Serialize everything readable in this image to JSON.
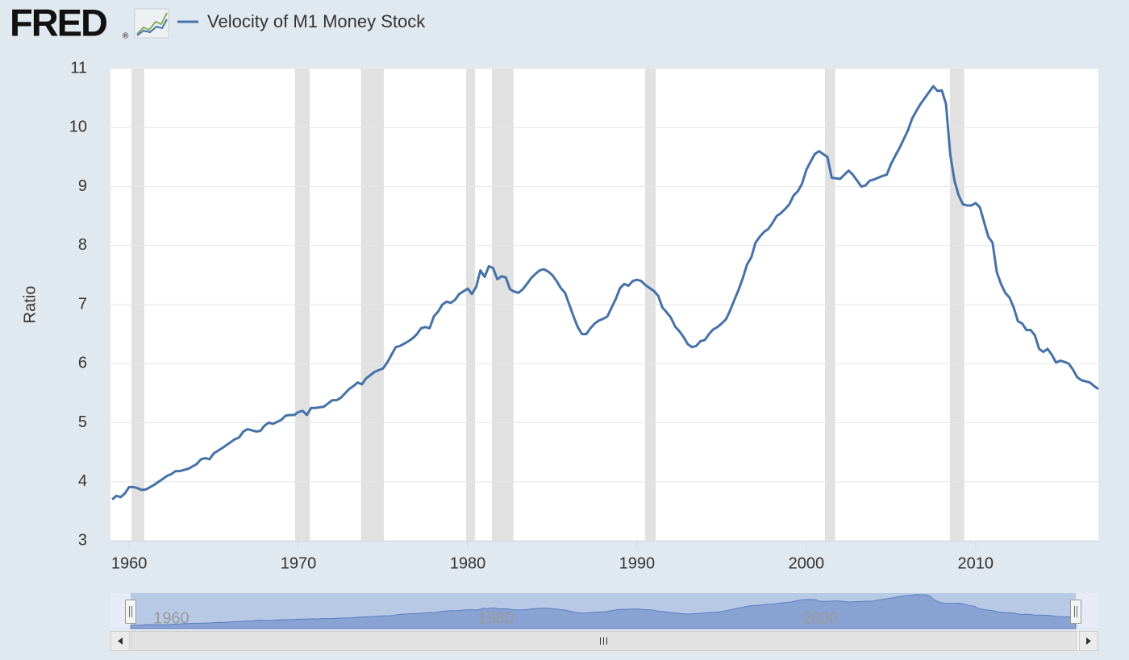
{
  "logo": "FRED",
  "logo_mark": "®",
  "chart_data": {
    "type": "line",
    "y_label": "Ratio",
    "xlim": [
      1958.9,
      2017.25
    ],
    "xticks": [
      1960,
      1970,
      1980,
      1990,
      2000,
      2010
    ],
    "ylim": [
      3,
      11
    ],
    "yticks": [
      3,
      4,
      5,
      6,
      7,
      8,
      9,
      10,
      11
    ],
    "grid": true,
    "recessions": [
      [
        1960.14,
        1960.9
      ],
      [
        1969.8,
        1970.67
      ],
      [
        1973.7,
        1975.05
      ],
      [
        1979.9,
        1980.43
      ],
      [
        1981.43,
        1982.7
      ],
      [
        1990.48,
        1991.1
      ],
      [
        2001.1,
        2001.7
      ],
      [
        2008.48,
        2009.33
      ]
    ],
    "recession_color": "#e1e1e1",
    "navigator_xticks": [
      1960,
      1980,
      2000
    ],
    "x": [
      1959,
      1959.25,
      1959.5,
      1959.75,
      1960,
      1960.25,
      1960.5,
      1960.75,
      1961,
      1961.5,
      1962,
      1962.25,
      1962.5,
      1962.75,
      1963,
      1963.5,
      1964,
      1964.25,
      1964.5,
      1964.75,
      1965,
      1965.5,
      1966,
      1966.25,
      1966.5,
      1966.75,
      1967,
      1967.5,
      1967.75,
      1968,
      1968.25,
      1968.5,
      1969,
      1969.25,
      1969.5,
      1969.75,
      1970,
      1970.25,
      1970.5,
      1970.75,
      1971,
      1971.5,
      1972,
      1972.25,
      1972.5,
      1973,
      1973.25,
      1973.5,
      1973.75,
      1974,
      1974.5,
      1975,
      1975.25,
      1975.5,
      1975.75,
      1976,
      1976.5,
      1976.75,
      1977,
      1977.25,
      1977.5,
      1977.75,
      1978,
      1978.25,
      1978.5,
      1978.75,
      1979,
      1979.25,
      1979.5,
      1980,
      1980.25,
      1980.5,
      1980.75,
      1981,
      1981.25,
      1981.5,
      1981.75,
      1982,
      1982.25,
      1982.5,
      1982.75,
      1983,
      1983.25,
      1983.5,
      1983.75,
      1984,
      1984.25,
      1984.5,
      1984.75,
      1985,
      1985.25,
      1985.5,
      1985.75,
      1986,
      1986.25,
      1986.5,
      1986.75,
      1987,
      1987.25,
      1987.5,
      1987.75,
      1988,
      1988.25,
      1988.5,
      1988.75,
      1989,
      1989.25,
      1989.5,
      1989.75,
      1990,
      1990.25,
      1990.5,
      1990.75,
      1991,
      1991.25,
      1991.5,
      1991.75,
      1992,
      1992.25,
      1992.5,
      1992.75,
      1993,
      1993.25,
      1993.5,
      1993.75,
      1994,
      1994.25,
      1994.5,
      1994.75,
      1995,
      1995.25,
      1995.5,
      1995.75,
      1996,
      1996.25,
      1996.5,
      1996.75,
      1997,
      1997.25,
      1997.5,
      1997.75,
      1998,
      1998.25,
      1998.5,
      1998.75,
      1999,
      1999.25,
      1999.5,
      1999.75,
      2000,
      2000.25,
      2000.5,
      2000.75,
      2001,
      2001.25,
      2001.5,
      2001.75,
      2002,
      2002.25,
      2002.5,
      2002.75,
      2003,
      2003.25,
      2003.5,
      2003.75,
      2004,
      2004.25,
      2004.5,
      2004.75,
      2005,
      2005.25,
      2005.5,
      2005.75,
      2006,
      2006.25,
      2006.5,
      2006.75,
      2007,
      2007.25,
      2007.5,
      2007.75,
      2008,
      2008.25,
      2008.5,
      2008.75,
      2009,
      2009.25,
      2009.5,
      2009.75,
      2010,
      2010.25,
      2010.5,
      2010.75,
      2011,
      2011.25,
      2011.5,
      2011.75,
      2012,
      2012.25,
      2012.5,
      2012.75,
      2013,
      2013.25,
      2013.5,
      2013.75,
      2014,
      2014.25,
      2014.5,
      2014.75,
      2015,
      2015.25,
      2015.5,
      2015.75,
      2016,
      2016.25,
      2016.5,
      2016.75,
      2017,
      2017.25
    ],
    "series": [
      {
        "name": "Velocity of M1 Money Stock",
        "color": "#4572a7",
        "values": [
          3.7,
          3.76,
          3.74,
          3.8,
          3.91,
          3.91,
          3.89,
          3.86,
          3.87,
          3.95,
          4.05,
          4.1,
          4.13,
          4.18,
          4.18,
          4.22,
          4.3,
          4.38,
          4.4,
          4.38,
          4.48,
          4.57,
          4.67,
          4.72,
          4.75,
          4.85,
          4.89,
          4.85,
          4.86,
          4.95,
          5.0,
          4.98,
          5.05,
          5.12,
          5.13,
          5.13,
          5.18,
          5.2,
          5.13,
          5.25,
          5.25,
          5.27,
          5.38,
          5.38,
          5.42,
          5.57,
          5.62,
          5.68,
          5.65,
          5.75,
          5.86,
          5.92,
          6.02,
          6.15,
          6.28,
          6.3,
          6.38,
          6.43,
          6.5,
          6.6,
          6.62,
          6.6,
          6.8,
          6.88,
          7.0,
          7.05,
          7.03,
          7.08,
          7.18,
          7.27,
          7.18,
          7.3,
          7.58,
          7.47,
          7.65,
          7.62,
          7.43,
          7.48,
          7.46,
          7.26,
          7.22,
          7.2,
          7.26,
          7.35,
          7.45,
          7.52,
          7.58,
          7.6,
          7.56,
          7.5,
          7.4,
          7.28,
          7.2,
          7.0,
          6.8,
          6.62,
          6.5,
          6.5,
          6.6,
          6.68,
          6.73,
          6.76,
          6.8,
          6.95,
          7.1,
          7.28,
          7.35,
          7.32,
          7.4,
          7.42,
          7.4,
          7.33,
          7.28,
          7.23,
          7.15,
          6.95,
          6.87,
          6.78,
          6.63,
          6.55,
          6.45,
          6.33,
          6.28,
          6.3,
          6.38,
          6.4,
          6.5,
          6.58,
          6.62,
          6.68,
          6.75,
          6.9,
          7.08,
          7.25,
          7.45,
          7.68,
          7.8,
          8.05,
          8.15,
          8.23,
          8.28,
          8.38,
          8.5,
          8.55,
          8.62,
          8.7,
          8.85,
          8.92,
          9.05,
          9.28,
          9.42,
          9.55,
          9.6,
          9.55,
          9.5,
          9.15,
          9.14,
          9.13,
          9.2,
          9.27,
          9.2,
          9.1,
          9.0,
          9.02,
          9.1,
          9.12,
          9.15,
          9.18,
          9.2,
          9.38,
          9.52,
          9.65,
          9.8,
          9.95,
          10.15,
          10.28,
          10.4,
          10.5,
          10.6,
          10.7,
          10.62,
          10.63,
          10.4,
          9.55,
          9.1,
          8.85,
          8.7,
          8.68,
          8.68,
          8.72,
          8.65,
          8.4,
          8.15,
          8.05,
          7.55,
          7.35,
          7.2,
          7.12,
          6.95,
          6.72,
          6.68,
          6.57,
          6.57,
          6.48,
          6.25,
          6.2,
          6.25,
          6.15,
          6.02,
          6.05,
          6.03,
          6.0,
          5.9,
          5.77,
          5.72,
          5.7,
          5.68,
          5.62,
          5.57
        ]
      }
    ]
  }
}
